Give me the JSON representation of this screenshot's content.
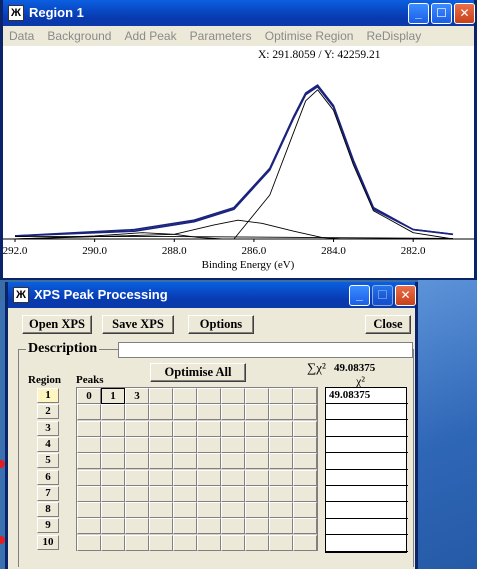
{
  "region_window": {
    "title": "Region 1",
    "menu": [
      "Data",
      "Background",
      "Add Peak",
      "Parameters",
      "Optimise Region",
      "ReDisplay"
    ],
    "cursor_readout": "X: 291.8059 / Y: 42259.21"
  },
  "chart_data": {
    "type": "line",
    "xlabel": "Binding Energy (eV)",
    "x_ticks": [
      "292.0",
      "290.0",
      "288.0",
      "286.0",
      "284.0",
      "282.0"
    ],
    "xlim": [
      292.0,
      281.0
    ],
    "x_reversed": true,
    "series": [
      {
        "x": [
          292.0,
          289.0,
          287.5,
          286.5,
          285.6,
          285.0,
          284.7,
          284.4,
          284.0,
          283.5,
          283.0,
          282.0,
          281.0
        ],
        "y": [
          0.02,
          0.06,
          0.12,
          0.2,
          0.45,
          0.78,
          0.93,
          0.98,
          0.85,
          0.5,
          0.2,
          0.06,
          0.03
        ]
      },
      {
        "x": [
          292.0,
          289.0,
          287.5,
          286.5,
          285.6,
          285.0,
          284.7,
          284.4,
          284.0,
          283.5,
          283.0,
          282.0,
          281.0
        ],
        "y": [
          0.02,
          0.05,
          0.11,
          0.19,
          0.44,
          0.77,
          0.92,
          0.97,
          0.84,
          0.49,
          0.19,
          0.06,
          0.03
        ]
      },
      {
        "x": [
          292.0,
          286.5,
          285.6,
          285.0,
          284.7,
          284.4,
          284.0,
          283.5,
          283.0,
          282.0,
          281.0
        ],
        "y": [
          0.0,
          0.0,
          0.28,
          0.68,
          0.88,
          0.95,
          0.82,
          0.47,
          0.18,
          0.04,
          0.0
        ]
      },
      {
        "x": [
          292.0,
          288.0,
          287.0,
          286.4,
          285.8,
          285.0,
          284.3,
          283.8,
          283.0
        ],
        "y": [
          0.0,
          0.03,
          0.09,
          0.12,
          0.1,
          0.05,
          0.01,
          0.0,
          0.0
        ]
      },
      {
        "x": [
          292.0,
          290.0,
          288.8,
          288.0,
          287.4,
          286.8
        ],
        "y": [
          0.0,
          0.02,
          0.04,
          0.03,
          0.01,
          0.0
        ]
      },
      {
        "x": [
          292.0,
          288.0,
          286.0,
          284.0,
          282.0,
          281.0
        ],
        "y": [
          0.015,
          0.015,
          0.012,
          0.008,
          0.005,
          0.004
        ]
      }
    ],
    "colors": {
      "envelope": "#1a237e",
      "components": "#000000"
    }
  },
  "xps_window": {
    "title": "XPS Peak Processing",
    "buttons": {
      "open": "Open XPS",
      "save": "Save XPS",
      "options": "Options",
      "close": "Close",
      "optimise_all": "Optimise All"
    },
    "description_label": "Description",
    "description_value": "",
    "chi_sum_label": "∑χ²",
    "chi_sum_value": "49.08375",
    "chi_header": "χ²",
    "region_header": "Region",
    "peaks_header": "Peaks",
    "regions": [
      "1",
      "2",
      "3",
      "4",
      "5",
      "6",
      "7",
      "8",
      "9",
      "10"
    ],
    "selected_region": "1",
    "peak_cells_row1": [
      "0",
      "1",
      "3"
    ],
    "chi_values": [
      "49.08375",
      "",
      "",
      "",
      "",
      "",
      "",
      "",
      "",
      ""
    ]
  }
}
